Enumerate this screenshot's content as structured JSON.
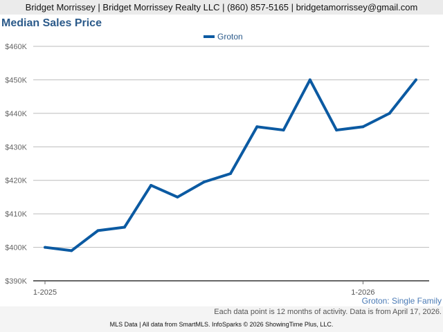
{
  "header": {
    "contact": "Bridget Morrissey | Bridget Morrissey Realty LLC | (860) 857-5165 | bridgetamorrissey@gmail.com"
  },
  "footer": {
    "subtitle": "Groton: Single Family",
    "note": "Each data point is 12 months of activity. Data is from April 17, 2026.",
    "credit": "MLS Data | All data from SmartMLS. InfoSparks © 2026 ShowingTime Plus, LLC."
  },
  "chart_data": {
    "type": "line",
    "title": "Median Sales Price",
    "legend": {
      "placement": "top-center",
      "entries": [
        "Groton"
      ]
    },
    "x": [
      "1-2025",
      "2-2025",
      "3-2025",
      "4-2025",
      "5-2025",
      "6-2025",
      "7-2025",
      "8-2025",
      "9-2025",
      "10-2025",
      "11-2025",
      "12-2025",
      "1-2026",
      "2-2026",
      "3-2026"
    ],
    "x_tick_labels": [
      "1-2025",
      "1-2026"
    ],
    "y_tick_labels": [
      "$390K",
      "$400K",
      "$410K",
      "$420K",
      "$430K",
      "$440K",
      "$450K",
      "$460K"
    ],
    "ylim": [
      390000,
      460000
    ],
    "grid": true,
    "series": [
      {
        "name": "Groton",
        "color": "#0b5aa2",
        "values": [
          400000,
          399000,
          405000,
          406000,
          418500,
          415000,
          419500,
          422000,
          436000,
          435000,
          450000,
          435000,
          436000,
          440000,
          450000
        ]
      }
    ]
  }
}
